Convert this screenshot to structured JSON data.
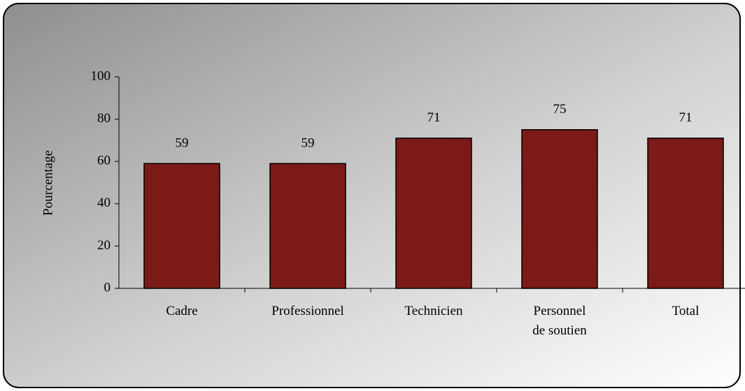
{
  "chart_data": {
    "type": "bar",
    "y_label": "Pourcentage",
    "categories": [
      "Cadre",
      "Professionnel",
      "Technicien",
      "Personnel\nde soutien",
      "Total"
    ],
    "values": [
      59,
      59,
      71,
      75,
      71
    ],
    "color": "#7b1a16",
    "ylim": [
      0,
      100
    ],
    "yticks": [
      0,
      20,
      40,
      60,
      80,
      100
    ],
    "grid": false
  }
}
